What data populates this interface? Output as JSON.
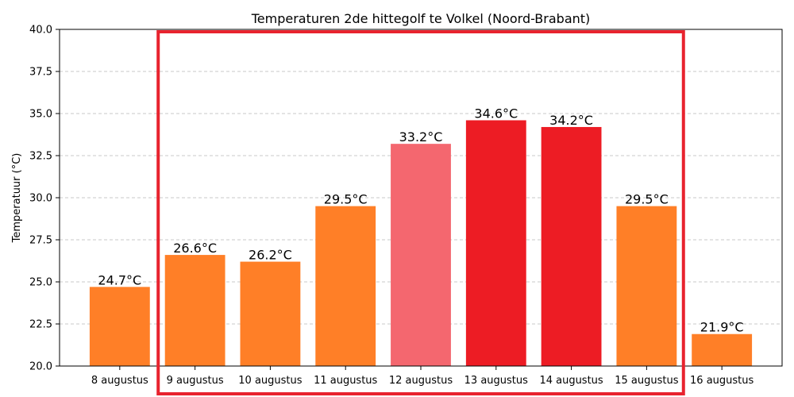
{
  "chart_data": {
    "type": "bar",
    "title": "Temperaturen 2de hittegolf te Volkel (Noord-Brabant)",
    "xlabel": "",
    "ylabel": "Temperatuur (°C)",
    "ylim": [
      20,
      40
    ],
    "yticks": [
      20.0,
      22.5,
      25.0,
      27.5,
      30.0,
      32.5,
      35.0,
      37.5,
      40.0
    ],
    "ytick_labels": [
      "20.0",
      "22.5",
      "25.0",
      "27.5",
      "30.0",
      "32.5",
      "35.0",
      "37.5",
      "40.0"
    ],
    "grid": "y-dashed",
    "categories": [
      "8 augustus",
      "9 augustus",
      "10 augustus",
      "11 augustus",
      "12 augustus",
      "13 augustus",
      "14 augustus",
      "15 augustus",
      "16 augustus"
    ],
    "values": [
      24.7,
      26.6,
      26.2,
      29.5,
      33.2,
      34.6,
      34.2,
      29.5,
      21.9
    ],
    "data_labels": [
      "24.7°C",
      "26.6°C",
      "26.2°C",
      "29.5°C",
      "33.2°C",
      "34.6°C",
      "34.2°C",
      "29.5°C",
      "21.9°C"
    ],
    "colors": [
      "#ff7f27",
      "#ff7f27",
      "#ff7f27",
      "#ff7f27",
      "#f4676f",
      "#ed1c24",
      "#ed1c24",
      "#ff7f27",
      "#ff7f27"
    ],
    "highlight": {
      "from_index": 1,
      "to_index": 7,
      "color": "#e8232e"
    }
  }
}
